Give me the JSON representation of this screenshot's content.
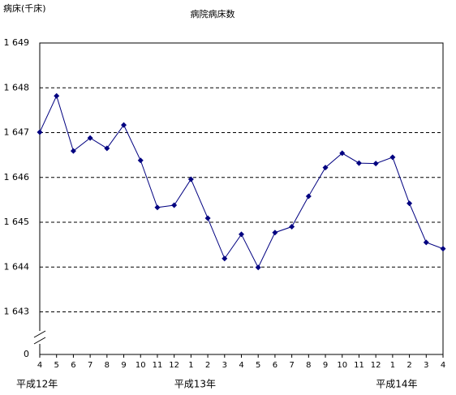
{
  "chart_data": {
    "type": "line",
    "title": "病院病床数",
    "y_label": "病床(千床)",
    "categories": [
      "4",
      "5",
      "6",
      "7",
      "8",
      "9",
      "10",
      "11",
      "12",
      "1",
      "2",
      "3",
      "4",
      "5",
      "6",
      "7",
      "8",
      "9",
      "10",
      "11",
      "12",
      "1",
      "2",
      "3",
      "4"
    ],
    "x_group_labels": [
      "平成12年",
      null,
      null,
      null,
      null,
      null,
      null,
      null,
      null,
      "平成13年",
      null,
      null,
      null,
      null,
      null,
      null,
      null,
      null,
      null,
      null,
      null,
      "平成14年",
      null,
      null,
      null
    ],
    "series": [
      {
        "name": "病院病床数",
        "color": "#000080",
        "values": [
          1647.01,
          1647.82,
          1646.59,
          1646.88,
          1646.65,
          1647.17,
          1646.38,
          1645.33,
          1645.38,
          1645.96,
          1645.09,
          1644.19,
          1644.73,
          1643.99,
          1644.77,
          1644.9,
          1645.58,
          1646.22,
          1646.54,
          1646.32,
          1646.31,
          1646.45,
          1645.42,
          1644.55,
          1644.41
        ]
      }
    ],
    "ylim": [
      1642.05,
      1649
    ],
    "yticks": [
      {
        "value": 1643,
        "label": "1 643"
      },
      {
        "value": 1644,
        "label": "1 644"
      },
      {
        "value": 1645,
        "label": "1 645"
      },
      {
        "value": 1646,
        "label": "1 646"
      },
      {
        "value": 1647,
        "label": "1 647"
      },
      {
        "value": 1648,
        "label": "1 648"
      },
      {
        "value": 1649,
        "label": "1 649"
      }
    ],
    "y_break_label": "0",
    "grid": true
  }
}
